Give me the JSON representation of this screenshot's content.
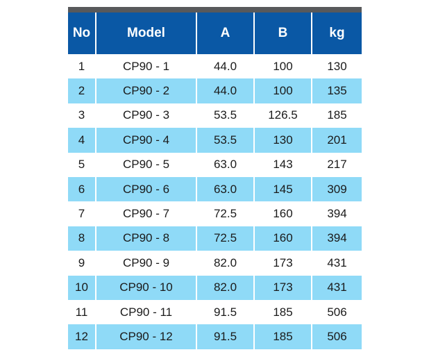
{
  "table": {
    "headers": {
      "no": "No",
      "model": "Model",
      "a": "A",
      "b": "B",
      "kg": "kg"
    },
    "rows": [
      {
        "no": "1",
        "model": "CP90 - 1",
        "a": "44.0",
        "b": "100",
        "kg": "130"
      },
      {
        "no": "2",
        "model": "CP90 - 2",
        "a": "44.0",
        "b": "100",
        "kg": "135"
      },
      {
        "no": "3",
        "model": "CP90 - 3",
        "a": "53.5",
        "b": "126.5",
        "kg": "185"
      },
      {
        "no": "4",
        "model": "CP90 - 4",
        "a": "53.5",
        "b": "130",
        "kg": "201"
      },
      {
        "no": "5",
        "model": "CP90 - 5",
        "a": "63.0",
        "b": "143",
        "kg": "217"
      },
      {
        "no": "6",
        "model": "CP90 - 6",
        "a": "63.0",
        "b": "145",
        "kg": "309"
      },
      {
        "no": "7",
        "model": "CP90 - 7",
        "a": "72.5",
        "b": "160",
        "kg": "394"
      },
      {
        "no": "8",
        "model": "CP90 - 8",
        "a": "72.5",
        "b": "160",
        "kg": "394"
      },
      {
        "no": "9",
        "model": "CP90 - 9",
        "a": "82.0",
        "b": "173",
        "kg": "431"
      },
      {
        "no": "10",
        "model": "CP90 - 10",
        "a": "82.0",
        "b": "173",
        "kg": "431"
      },
      {
        "no": "11",
        "model": "CP90 - 11",
        "a": "91.5",
        "b": "185",
        "kg": "506"
      },
      {
        "no": "12",
        "model": "CP90 - 12",
        "a": "91.5",
        "b": "185",
        "kg": "506"
      }
    ]
  },
  "colors": {
    "header_bg": "#0a58a5",
    "header_text": "#ffffff",
    "stripe_bg": "#8fdaf7",
    "top_bar": "#58595b"
  }
}
